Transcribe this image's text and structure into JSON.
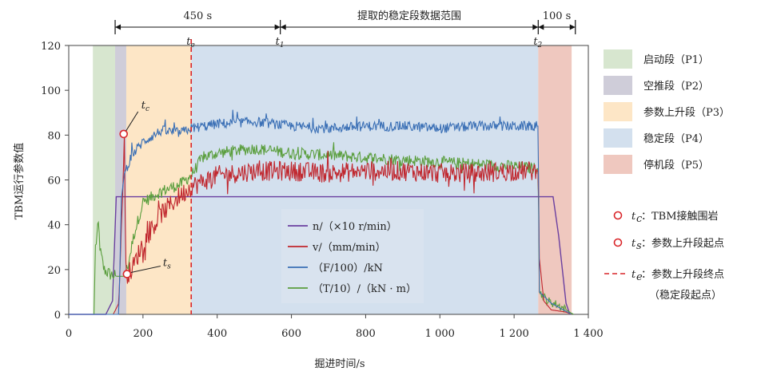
{
  "chart_data": {
    "type": "line",
    "xlabel": "掘进时间/s",
    "ylabel": "TBM运行参数值",
    "xlim": [
      0,
      1400
    ],
    "ylim": [
      0,
      120
    ],
    "x_ticks": [
      0,
      200,
      400,
      600,
      800,
      1000,
      1200,
      1400
    ],
    "x_tick_labels": [
      "0",
      "200",
      "400",
      "600",
      "800",
      "1 000",
      "1 200",
      "1 400"
    ],
    "y_ticks": [
      0,
      20,
      40,
      60,
      80,
      100,
      120
    ],
    "y_tick_labels": [
      "0",
      "20",
      "40",
      "60",
      "80",
      "100",
      "120"
    ],
    "phases": [
      {
        "name": "启动段（P1）",
        "range": [
          65,
          125
        ],
        "color": "#d7e6cf"
      },
      {
        "name": "空推段（P2）",
        "range": [
          125,
          155
        ],
        "color": "#cfcdd9"
      },
      {
        "name": "参数上升段（P3）",
        "range": [
          155,
          330
        ],
        "color": "#fde6c6"
      },
      {
        "name": "稳定段（P4）",
        "range": [
          330,
          1265
        ],
        "color": "#d3e0ee"
      },
      {
        "name": "停机段（P5）",
        "range": [
          1265,
          1355
        ],
        "color": "#efc8bf"
      }
    ],
    "spans": [
      {
        "label": "450 s",
        "from": 125,
        "to": 570
      },
      {
        "label": "提取的稳定段数据范围",
        "from": 570,
        "to": 1265
      },
      {
        "label": "100 s",
        "from": 1265,
        "to": 1365
      }
    ],
    "markers": {
      "te": {
        "x": 330
      },
      "t1": {
        "x": 570
      },
      "t2": {
        "x": 1265
      },
      "tc": {
        "x": 148,
        "y": 80.5
      },
      "ts": {
        "x": 157,
        "y": 18
      }
    },
    "series": [
      {
        "name": "n/（×10 r/min）",
        "color": "#6a3fa0",
        "kind": "n",
        "points": [
          [
            0,
            0
          ],
          [
            100,
            0
          ],
          [
            118,
            6
          ],
          [
            128,
            52.5
          ],
          [
            1305,
            52.5
          ],
          [
            1320,
            35
          ],
          [
            1340,
            5
          ],
          [
            1350,
            0
          ]
        ]
      },
      {
        "name": "v/（mm/min）",
        "color": "#c0262d",
        "kind": "v",
        "points": [
          [
            0,
            0
          ],
          [
            120,
            0
          ],
          [
            135,
            5
          ],
          [
            142,
            40
          ],
          [
            147,
            62
          ],
          [
            150,
            80.5
          ],
          [
            153,
            25
          ],
          [
            157,
            18
          ],
          [
            170,
            20
          ],
          [
            200,
            32
          ],
          [
            250,
            45
          ],
          [
            300,
            53
          ],
          [
            330,
            57
          ],
          [
            400,
            62
          ],
          [
            500,
            64
          ],
          [
            600,
            64
          ],
          [
            700,
            63
          ],
          [
            800,
            64
          ],
          [
            900,
            64
          ],
          [
            1000,
            63
          ],
          [
            1100,
            63
          ],
          [
            1200,
            64
          ],
          [
            1265,
            64
          ],
          [
            1268,
            25
          ],
          [
            1280,
            6
          ],
          [
            1300,
            2
          ],
          [
            1340,
            1
          ],
          [
            1355,
            0
          ]
        ]
      },
      {
        "name": "（F/100）/kN",
        "color": "#3a6fb5",
        "kind": "F",
        "points": [
          [
            0,
            0
          ],
          [
            135,
            0
          ],
          [
            142,
            52
          ],
          [
            150,
            63
          ],
          [
            170,
            71
          ],
          [
            200,
            77
          ],
          [
            250,
            82
          ],
          [
            300,
            81
          ],
          [
            330,
            83
          ],
          [
            400,
            85
          ],
          [
            500,
            86
          ],
          [
            600,
            84
          ],
          [
            700,
            83
          ],
          [
            800,
            84
          ],
          [
            900,
            84
          ],
          [
            1000,
            83
          ],
          [
            1100,
            84
          ],
          [
            1200,
            84
          ],
          [
            1265,
            84
          ],
          [
            1268,
            10
          ],
          [
            1300,
            5
          ],
          [
            1355,
            0
          ]
        ]
      },
      {
        "name": "（T/10）/（kN · m）",
        "color": "#5a9e3d",
        "kind": "T",
        "points": [
          [
            0,
            0
          ],
          [
            68,
            0
          ],
          [
            72,
            30
          ],
          [
            80,
            40
          ],
          [
            85,
            28
          ],
          [
            95,
            20
          ],
          [
            110,
            18
          ],
          [
            130,
            17
          ],
          [
            150,
            17
          ],
          [
            160,
            22
          ],
          [
            175,
            35
          ],
          [
            200,
            50
          ],
          [
            250,
            55
          ],
          [
            300,
            58
          ],
          [
            330,
            62
          ],
          [
            360,
            70
          ],
          [
            400,
            72
          ],
          [
            500,
            74
          ],
          [
            600,
            72
          ],
          [
            700,
            71
          ],
          [
            800,
            70
          ],
          [
            900,
            69
          ],
          [
            1000,
            68
          ],
          [
            1100,
            67
          ],
          [
            1200,
            66
          ],
          [
            1265,
            65
          ],
          [
            1268,
            10
          ],
          [
            1290,
            6
          ],
          [
            1320,
            4
          ],
          [
            1350,
            1
          ],
          [
            1360,
            0
          ]
        ]
      }
    ],
    "legend_markers": [
      {
        "sym": "t",
        "sub": "c",
        "text": "：TBM接触围岩"
      },
      {
        "sym": "t",
        "sub": "s",
        "text": "：参数上升段起点"
      },
      {
        "sym": "t",
        "sub": "e",
        "text": "：参数上升段终点"
      },
      {
        "text": "（稳定段起点）"
      }
    ]
  }
}
